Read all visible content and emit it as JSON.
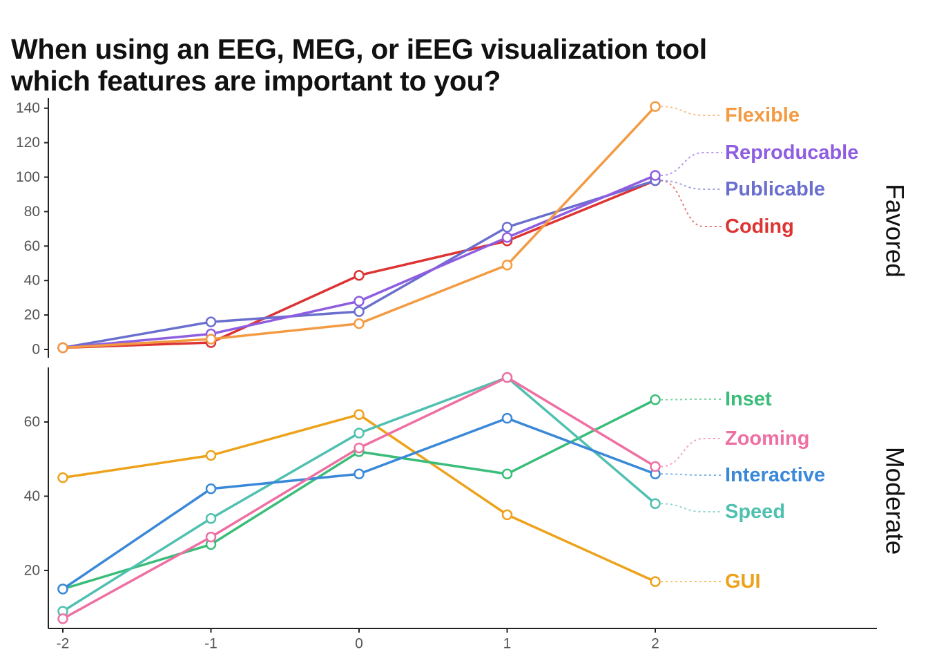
{
  "title": {
    "line1": "When using an EEG, MEG, or iEEG visualization tool",
    "line2": "which features are important to you?"
  },
  "chart_data": {
    "type": "line",
    "x": [
      -2,
      -1,
      0,
      1,
      2
    ],
    "x_tick_labels": [
      "-2",
      "-1",
      "0",
      "1",
      "2"
    ],
    "xlabel": "",
    "ylabel": "",
    "grid": false,
    "legend": "direct labels at right end of lines",
    "panels": [
      {
        "facet_label": "Favored",
        "ylim": [
          -3,
          143
        ],
        "y_ticks": [
          0,
          20,
          40,
          60,
          80,
          100,
          120,
          140
        ],
        "series": [
          {
            "name": "Coding",
            "color": "#dd3333",
            "values": [
              1,
              4,
              43,
              63,
              98
            ]
          },
          {
            "name": "Publicable",
            "color": "#6a6fce",
            "values": [
              1,
              16,
              22,
              71,
              98
            ]
          },
          {
            "name": "Reproducable",
            "color": "#8e5de0",
            "values": [
              1,
              9,
              28,
              65,
              101
            ]
          },
          {
            "name": "Flexible",
            "color": "#f39a42",
            "values": [
              1,
              6,
              15,
              49,
              141
            ]
          }
        ]
      },
      {
        "facet_label": "Moderate",
        "ylim": [
          4,
          75
        ],
        "y_ticks": [
          20,
          40,
          60
        ],
        "series": [
          {
            "name": "GUI",
            "color": "#eda21b",
            "values": [
              45,
              51,
              62,
              35,
              17
            ]
          },
          {
            "name": "Inset",
            "color": "#3abd79",
            "values": [
              15,
              27,
              52,
              46,
              66
            ]
          },
          {
            "name": "Speed",
            "color": "#50c0b0",
            "values": [
              9,
              34,
              57,
              72,
              38
            ]
          },
          {
            "name": "Interactive",
            "color": "#3a88d8",
            "values": [
              15,
              42,
              46,
              61,
              46
            ]
          },
          {
            "name": "Zooming",
            "color": "#ee6fa2",
            "values": [
              7,
              29,
              53,
              72,
              48
            ]
          }
        ]
      }
    ]
  }
}
